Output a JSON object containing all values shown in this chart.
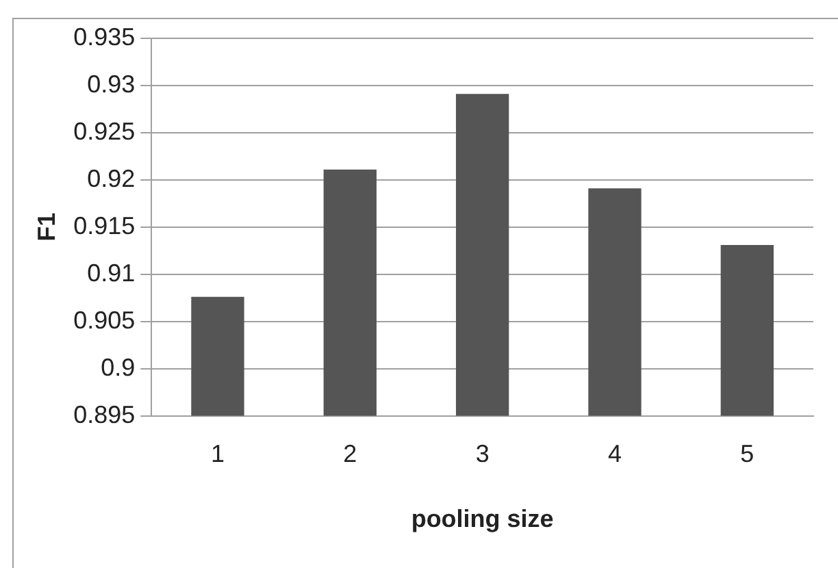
{
  "chart_data": {
    "type": "bar",
    "xlabel": "pooling size",
    "ylabel": "F1",
    "categories": [
      "1",
      "2",
      "3",
      "4",
      "5"
    ],
    "values": [
      0.9076,
      0.9211,
      0.9291,
      0.9191,
      0.9131
    ],
    "color": "#555555",
    "ylim": [
      0.895,
      0.935
    ],
    "yticks": [
      0.895,
      0.9,
      0.905,
      0.91,
      0.915,
      0.92,
      0.925,
      0.93,
      0.935
    ],
    "grid": "y",
    "legend": false
  }
}
